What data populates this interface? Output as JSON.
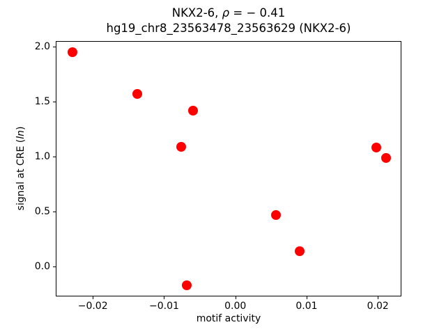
{
  "chart_data": {
    "type": "scatter",
    "title": {
      "line1_prefix": "NKX2-6, ",
      "line1_rho": "ρ",
      "line1_rest": " = − 0.41",
      "line2": "hg19_chr8_23563478_23563629 (NKX2-6)"
    },
    "xlabel": "motif activity",
    "ylabel": {
      "prefix": "signal at CRE (",
      "italic": "ln",
      "suffix": ")"
    },
    "xlim": [
      -0.0252,
      0.0233
    ],
    "ylim": [
      -0.272,
      2.051
    ],
    "x_ticks": [
      {
        "value": -0.02,
        "label": "−0.02"
      },
      {
        "value": -0.01,
        "label": "−0.01"
      },
      {
        "value": 0.0,
        "label": "0.00"
      },
      {
        "value": 0.01,
        "label": "0.01"
      },
      {
        "value": 0.02,
        "label": "0.02"
      }
    ],
    "y_ticks": [
      {
        "value": 0.0,
        "label": "0.0"
      },
      {
        "value": 0.5,
        "label": "0.5"
      },
      {
        "value": 1.0,
        "label": "1.0"
      },
      {
        "value": 1.5,
        "label": "1.5"
      },
      {
        "value": 2.0,
        "label": "2.0"
      }
    ],
    "marker_color": "#ff0000",
    "points": [
      {
        "x": -0.0229,
        "y": 1.95
      },
      {
        "x": -0.0138,
        "y": 1.57
      },
      {
        "x": -0.0059,
        "y": 1.42
      },
      {
        "x": -0.0076,
        "y": 1.09
      },
      {
        "x": 0.0198,
        "y": 1.08
      },
      {
        "x": 0.0211,
        "y": 0.99
      },
      {
        "x": 0.0057,
        "y": 0.47
      },
      {
        "x": 0.009,
        "y": 0.14
      },
      {
        "x": -0.0068,
        "y": -0.17
      }
    ],
    "grid": false,
    "legend": null
  }
}
